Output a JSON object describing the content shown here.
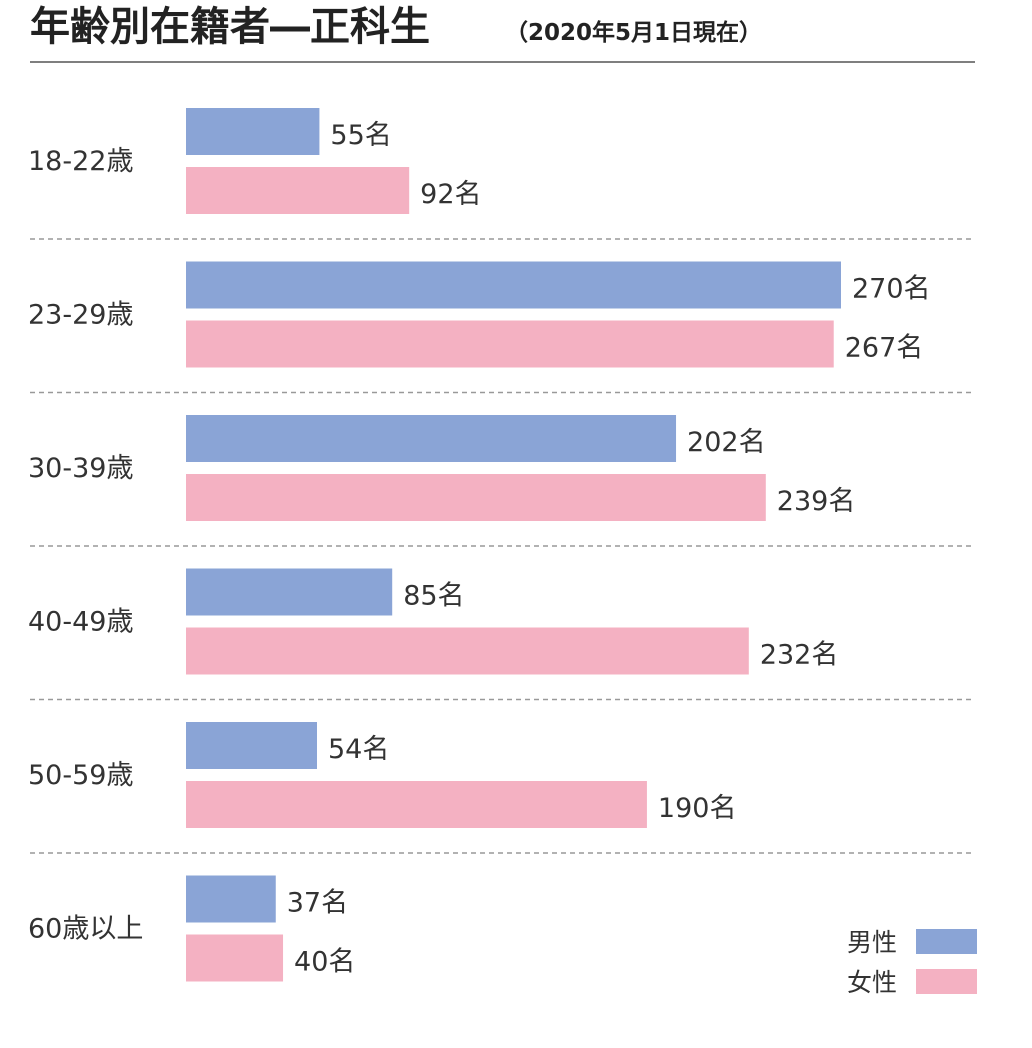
{
  "chart_data": {
    "type": "bar",
    "orientation": "horizontal",
    "title": "年齢別在籍者―正科生",
    "subtitle": "（2020年5月1日現在）",
    "categories": [
      "18-22歳",
      "23-29歳",
      "30-39歳",
      "40-49歳",
      "50-59歳",
      "60歳以上"
    ],
    "series": [
      {
        "name": "男性",
        "values": [
          55,
          270,
          202,
          85,
          54,
          37
        ],
        "color": "#8aa4d6"
      },
      {
        "name": "女性",
        "values": [
          92,
          267,
          239,
          232,
          190,
          40
        ],
        "color": "#f4b1c2"
      }
    ],
    "value_unit": "名",
    "xlim": [
      0,
      270
    ],
    "legend_position": "bottom-right",
    "grid": false
  }
}
